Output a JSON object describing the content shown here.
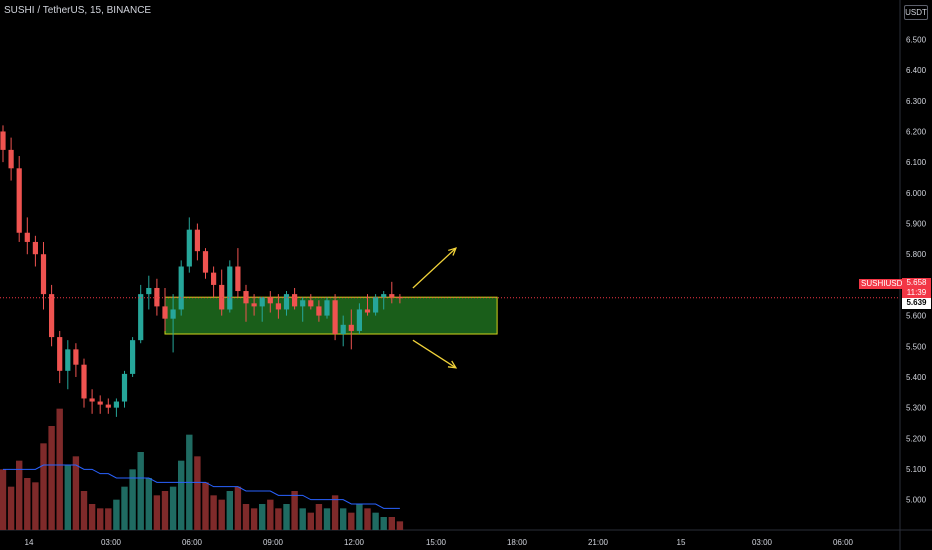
{
  "header": {
    "symbol_line": "SUSHI / TetherUS, 15, BINANCE",
    "currency": "USDT"
  },
  "price_labels": {
    "symbol": "SUSHIUSDT",
    "last_price": "5.658",
    "countdown": "11:39",
    "second_price": "5.639"
  },
  "colors": {
    "background": "#000000",
    "up": "#26a69a",
    "down": "#ef5350",
    "volume_up": "#1f6b62",
    "volume_down": "#7f2a2a",
    "volume_ma": "#2962ff",
    "zone_fill": "#1f6e1f",
    "zone_border": "#d4d41c",
    "arrows": "#f0d23a",
    "price_line": "#f23645",
    "axis_text": "#d1d4dc"
  },
  "chart_data": {
    "type": "candlestick",
    "symbol": "SUSHI / TetherUS",
    "interval": "15",
    "exchange": "BINANCE",
    "y_axis": {
      "ticks": [
        "6.500",
        "6.400",
        "6.300",
        "6.200",
        "6.100",
        "6.000",
        "5.900",
        "5.800",
        "5.700",
        "5.600",
        "5.500",
        "5.400",
        "5.300",
        "5.200",
        "5.100",
        "5.000"
      ],
      "range": [
        4.96,
        6.56
      ]
    },
    "x_axis": {
      "ticks": [
        "14",
        "03:00",
        "06:00",
        "09:00",
        "12:00",
        "15:00",
        "18:00",
        "21:00",
        "15",
        "03:00",
        "06:00"
      ]
    },
    "candles": [
      [
        6.2,
        6.22,
        6.1,
        6.14
      ],
      [
        6.14,
        6.18,
        6.04,
        6.08
      ],
      [
        6.08,
        6.12,
        5.84,
        5.87
      ],
      [
        5.87,
        5.92,
        5.8,
        5.84
      ],
      [
        5.84,
        5.86,
        5.76,
        5.8
      ],
      [
        5.8,
        5.84,
        5.62,
        5.67
      ],
      [
        5.67,
        5.7,
        5.5,
        5.53
      ],
      [
        5.53,
        5.55,
        5.38,
        5.42
      ],
      [
        5.42,
        5.52,
        5.36,
        5.49
      ],
      [
        5.49,
        5.51,
        5.4,
        5.44
      ],
      [
        5.44,
        5.46,
        5.3,
        5.33
      ],
      [
        5.33,
        5.36,
        5.28,
        5.32
      ],
      [
        5.32,
        5.34,
        5.28,
        5.31
      ],
      [
        5.31,
        5.33,
        5.28,
        5.3
      ],
      [
        5.3,
        5.33,
        5.27,
        5.32
      ],
      [
        5.32,
        5.42,
        5.3,
        5.41
      ],
      [
        5.41,
        5.53,
        5.4,
        5.52
      ],
      [
        5.52,
        5.7,
        5.51,
        5.67
      ],
      [
        5.67,
        5.73,
        5.62,
        5.69
      ],
      [
        5.69,
        5.72,
        5.6,
        5.63
      ],
      [
        5.63,
        5.69,
        5.55,
        5.59
      ],
      [
        5.59,
        5.67,
        5.48,
        5.62
      ],
      [
        5.62,
        5.78,
        5.6,
        5.76
      ],
      [
        5.76,
        5.92,
        5.74,
        5.88
      ],
      [
        5.88,
        5.9,
        5.78,
        5.81
      ],
      [
        5.81,
        5.82,
        5.72,
        5.74
      ],
      [
        5.74,
        5.76,
        5.66,
        5.7
      ],
      [
        5.7,
        5.75,
        5.6,
        5.62
      ],
      [
        5.62,
        5.78,
        5.61,
        5.76
      ],
      [
        5.76,
        5.82,
        5.66,
        5.68
      ],
      [
        5.68,
        5.7,
        5.58,
        5.64
      ],
      [
        5.64,
        5.67,
        5.6,
        5.63
      ],
      [
        5.63,
        5.66,
        5.58,
        5.66
      ],
      [
        5.66,
        5.68,
        5.61,
        5.64
      ],
      [
        5.64,
        5.67,
        5.59,
        5.62
      ],
      [
        5.62,
        5.68,
        5.6,
        5.67
      ],
      [
        5.67,
        5.69,
        5.62,
        5.63
      ],
      [
        5.63,
        5.66,
        5.58,
        5.65
      ],
      [
        5.65,
        5.67,
        5.62,
        5.63
      ],
      [
        5.63,
        5.65,
        5.58,
        5.6
      ],
      [
        5.6,
        5.66,
        5.59,
        5.65
      ],
      [
        5.65,
        5.67,
        5.52,
        5.54
      ],
      [
        5.54,
        5.6,
        5.5,
        5.57
      ],
      [
        5.57,
        5.62,
        5.49,
        5.55
      ],
      [
        5.55,
        5.64,
        5.54,
        5.62
      ],
      [
        5.62,
        5.67,
        5.6,
        5.61
      ],
      [
        5.61,
        5.67,
        5.6,
        5.66
      ],
      [
        5.66,
        5.68,
        5.62,
        5.67
      ],
      [
        5.67,
        5.71,
        5.64,
        5.66
      ],
      [
        5.66,
        5.67,
        5.64,
        5.658
      ]
    ],
    "volume": [
      14,
      10,
      16,
      12,
      11,
      20,
      24,
      28,
      15,
      17,
      9,
      6,
      5,
      5,
      7,
      10,
      14,
      18,
      12,
      8,
      9,
      10,
      16,
      22,
      17,
      11,
      8,
      7,
      9,
      10,
      6,
      5,
      6,
      7,
      5,
      6,
      9,
      5,
      4,
      6,
      5,
      8,
      5,
      4,
      6,
      5,
      4,
      3,
      3,
      2
    ],
    "volume_ma": [
      14,
      14,
      14,
      14,
      14,
      15,
      15,
      15,
      15,
      15,
      14,
      14,
      13,
      13,
      12,
      12,
      12,
      12,
      12,
      11,
      11,
      11,
      11,
      11,
      11,
      11,
      10,
      10,
      10,
      10,
      9,
      9,
      9,
      9,
      8,
      8,
      8,
      8,
      7,
      7,
      7,
      7,
      7,
      6,
      6,
      6,
      6,
      5,
      5,
      5
    ],
    "volume_max": 30,
    "zone": {
      "top": 5.66,
      "bottom": 5.54,
      "start_index": 20,
      "end_index": 61
    },
    "arrows": [
      {
        "direction": "up",
        "from_price": 5.69,
        "to_price": 5.82
      },
      {
        "direction": "down",
        "from_price": 5.52,
        "to_price": 5.43
      }
    ],
    "last_price": 5.658,
    "second_price": 5.639,
    "total_slots": 112
  }
}
